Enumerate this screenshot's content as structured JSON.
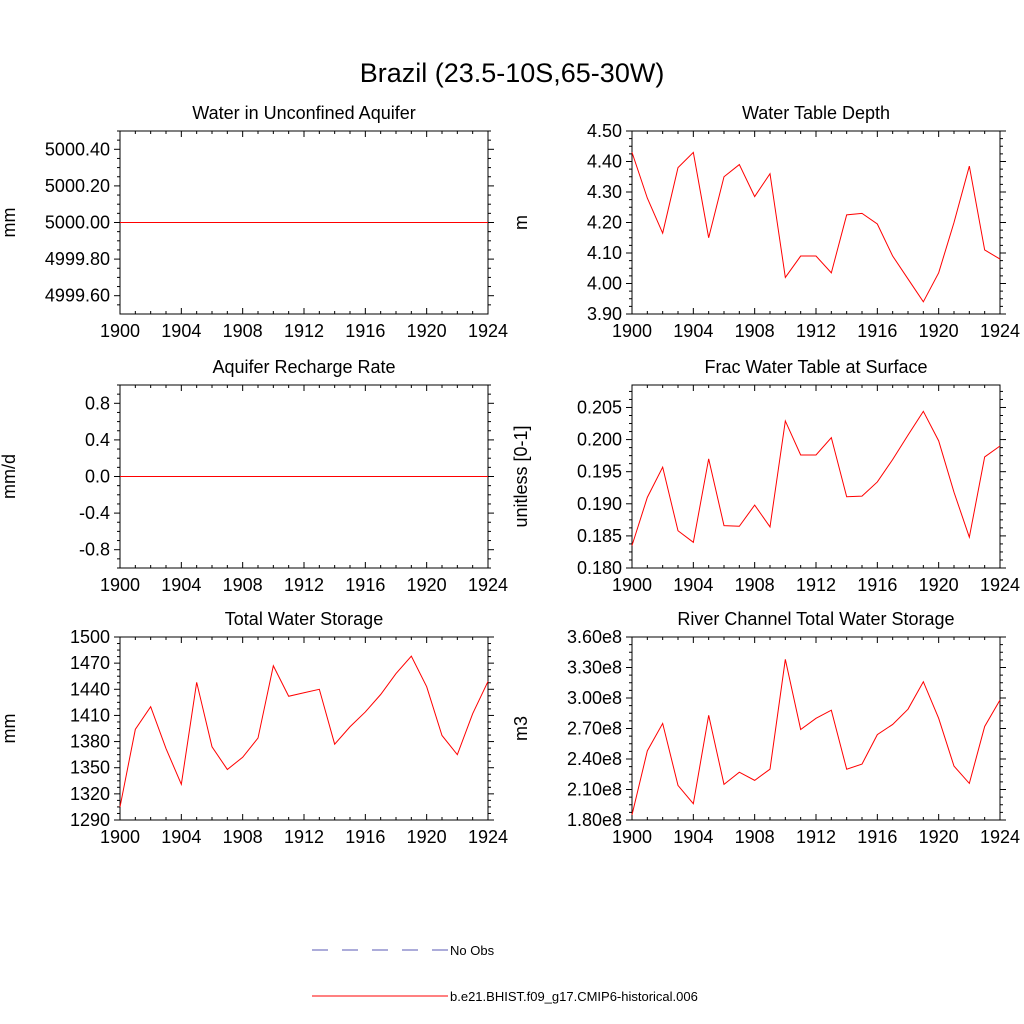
{
  "figure_title": "Brazil (23.5-10S,65-30W)",
  "colors": {
    "model": "#ff0000",
    "obs": "#5a5ab4",
    "frame": "#000000"
  },
  "legend": {
    "items": [
      {
        "label": "No Obs",
        "style": "dashed",
        "color": "#5a5ab4"
      },
      {
        "label": "b.e21.BHIST.f09_g17.CMIP6-historical.006",
        "style": "solid",
        "color": "#ff0000"
      }
    ]
  },
  "chart_data": [
    {
      "type": "line",
      "title": "Water in Unconfined Aquifer",
      "ylabel": "mm",
      "xlim": [
        1900,
        1924
      ],
      "ylim": [
        4999.5,
        5000.5
      ],
      "yticks": [
        4999.6,
        4999.8,
        5000.0,
        5000.2,
        5000.4
      ],
      "ytick_labels": [
        "4999.60",
        "4999.80",
        "5000.00",
        "5000.20",
        "5000.40"
      ],
      "xticks": [
        1900,
        1904,
        1908,
        1912,
        1916,
        1920,
        1924
      ],
      "xtick_labels": [
        "1900",
        "1904",
        "1908",
        "1912",
        "1916",
        "1920",
        "1924"
      ],
      "series": [
        {
          "x": [
            1900,
            1901,
            1902,
            1903,
            1904,
            1905,
            1906,
            1907,
            1908,
            1909,
            1910,
            1911,
            1912,
            1913,
            1914,
            1915,
            1916,
            1917,
            1918,
            1919,
            1920,
            1921,
            1922,
            1923,
            1924
          ],
          "y": [
            5000,
            5000,
            5000,
            5000,
            5000,
            5000,
            5000,
            5000,
            5000,
            5000,
            5000,
            5000,
            5000,
            5000,
            5000,
            5000,
            5000,
            5000,
            5000,
            5000,
            5000,
            5000,
            5000,
            5000,
            5000
          ]
        }
      ]
    },
    {
      "type": "line",
      "title": "Water Table Depth",
      "ylabel": "m",
      "xlim": [
        1900,
        1924
      ],
      "ylim": [
        3.9,
        4.5
      ],
      "yticks": [
        3.9,
        4.0,
        4.1,
        4.2,
        4.3,
        4.4,
        4.5
      ],
      "ytick_labels": [
        "3.90",
        "4.00",
        "4.10",
        "4.20",
        "4.30",
        "4.40",
        "4.50"
      ],
      "xticks": [
        1900,
        1904,
        1908,
        1912,
        1916,
        1920,
        1924
      ],
      "xtick_labels": [
        "1900",
        "1904",
        "1908",
        "1912",
        "1916",
        "1920",
        "1924"
      ],
      "series": [
        {
          "x": [
            1900,
            1901,
            1902,
            1903,
            1904,
            1905,
            1906,
            1907,
            1908,
            1909,
            1910,
            1911,
            1912,
            1913,
            1914,
            1915,
            1916,
            1917,
            1918,
            1919,
            1920,
            1921,
            1922,
            1923,
            1924
          ],
          "y": [
            4.43,
            4.28,
            4.165,
            4.38,
            4.43,
            4.15,
            4.35,
            4.39,
            4.285,
            4.36,
            4.02,
            4.09,
            4.09,
            4.035,
            4.225,
            4.23,
            4.195,
            4.09,
            4.015,
            3.94,
            4.035,
            4.2,
            4.385,
            4.11,
            4.08
          ]
        }
      ]
    },
    {
      "type": "line",
      "title": "Aquifer Recharge Rate",
      "ylabel": "mm/d",
      "xlim": [
        1900,
        1924
      ],
      "ylim": [
        -1.0,
        1.0
      ],
      "yticks": [
        -0.8,
        -0.4,
        0.0,
        0.4,
        0.8
      ],
      "ytick_labels": [
        "-0.8",
        "-0.4",
        "0.0",
        "0.4",
        "0.8"
      ],
      "xticks": [
        1900,
        1904,
        1908,
        1912,
        1916,
        1920,
        1924
      ],
      "xtick_labels": [
        "1900",
        "1904",
        "1908",
        "1912",
        "1916",
        "1920",
        "1924"
      ],
      "series": [
        {
          "x": [
            1900,
            1901,
            1902,
            1903,
            1904,
            1905,
            1906,
            1907,
            1908,
            1909,
            1910,
            1911,
            1912,
            1913,
            1914,
            1915,
            1916,
            1917,
            1918,
            1919,
            1920,
            1921,
            1922,
            1923,
            1924
          ],
          "y": [
            0,
            0,
            0,
            0,
            0,
            0,
            0,
            0,
            0,
            0,
            0,
            0,
            0,
            0,
            0,
            0,
            0,
            0,
            0,
            0,
            0,
            0,
            0,
            0,
            0
          ]
        }
      ]
    },
    {
      "type": "line",
      "title": "Frac Water Table at Surface",
      "ylabel": "unitless [0-1]",
      "xlim": [
        1900,
        1924
      ],
      "ylim": [
        0.18,
        0.2085
      ],
      "yticks": [
        0.18,
        0.185,
        0.19,
        0.195,
        0.2,
        0.205
      ],
      "ytick_labels": [
        "0.180",
        "0.185",
        "0.190",
        "0.195",
        "0.200",
        "0.205"
      ],
      "xticks": [
        1900,
        1904,
        1908,
        1912,
        1916,
        1920,
        1924
      ],
      "xtick_labels": [
        "1900",
        "1904",
        "1908",
        "1912",
        "1916",
        "1920",
        "1924"
      ],
      "series": [
        {
          "x": [
            1900,
            1901,
            1902,
            1903,
            1904,
            1905,
            1906,
            1907,
            1908,
            1909,
            1910,
            1911,
            1912,
            1913,
            1914,
            1915,
            1916,
            1917,
            1918,
            1919,
            1920,
            1921,
            1922,
            1923,
            1924
          ],
          "y": [
            0.1835,
            0.191,
            0.1957,
            0.1858,
            0.184,
            0.197,
            0.1866,
            0.1865,
            0.1898,
            0.1864,
            0.2029,
            0.1976,
            0.1976,
            0.2003,
            0.1911,
            0.1912,
            0.1934,
            0.1969,
            0.2007,
            0.2044,
            0.1998,
            0.1918,
            0.1848,
            0.1973,
            0.199
          ]
        }
      ]
    },
    {
      "type": "line",
      "title": "Total Water Storage",
      "ylabel": "mm",
      "xlim": [
        1900,
        1924
      ],
      "ylim": [
        1290,
        1500
      ],
      "yticks": [
        1290,
        1320,
        1350,
        1380,
        1410,
        1440,
        1470,
        1500
      ],
      "ytick_labels": [
        "1290",
        "1320",
        "1350",
        "1380",
        "1410",
        "1440",
        "1470",
        "1500"
      ],
      "xticks": [
        1900,
        1904,
        1908,
        1912,
        1916,
        1920,
        1924
      ],
      "xtick_labels": [
        "1900",
        "1904",
        "1908",
        "1912",
        "1916",
        "1920",
        "1924"
      ],
      "series": [
        {
          "x": [
            1900,
            1901,
            1902,
            1903,
            1904,
            1905,
            1906,
            1907,
            1908,
            1909,
            1910,
            1911,
            1912,
            1913,
            1914,
            1915,
            1916,
            1917,
            1918,
            1919,
            1920,
            1921,
            1922,
            1923,
            1924
          ],
          "y": [
            1305,
            1394,
            1420,
            1372,
            1331,
            1448,
            1374,
            1348,
            1362,
            1384,
            1467,
            1432,
            1436,
            1440,
            1377,
            1397,
            1414,
            1434,
            1458,
            1478,
            1443,
            1387,
            1365,
            1412,
            1449
          ]
        }
      ]
    },
    {
      "type": "line",
      "title": "River Channel Total Water Storage",
      "ylabel": "m3",
      "xlim": [
        1900,
        1924
      ],
      "ylim": [
        180000000,
        360000000
      ],
      "yticks": [
        180000000,
        210000000,
        240000000,
        270000000,
        300000000,
        330000000,
        360000000
      ],
      "ytick_labels": [
        "1.80e8",
        "2.10e8",
        "2.40e8",
        "2.70e8",
        "3.00e8",
        "3.30e8",
        "3.60e8"
      ],
      "xticks": [
        1900,
        1904,
        1908,
        1912,
        1916,
        1920,
        1924
      ],
      "xtick_labels": [
        "1900",
        "1904",
        "1908",
        "1912",
        "1916",
        "1920",
        "1924"
      ],
      "series": [
        {
          "x": [
            1900,
            1901,
            1902,
            1903,
            1904,
            1905,
            1906,
            1907,
            1908,
            1909,
            1910,
            1911,
            1912,
            1913,
            1914,
            1915,
            1916,
            1917,
            1918,
            1919,
            1920,
            1921,
            1922,
            1923,
            1924
          ],
          "y": [
            185000000,
            248000000,
            275000000,
            214000000,
            196000000,
            283000000,
            215000000,
            227000000,
            219000000,
            230000000,
            338000000,
            269000000,
            280000000,
            288000000,
            230000000,
            235000000,
            264000000,
            274000000,
            289000000,
            316000000,
            280000000,
            233000000,
            216000000,
            272000000,
            298000000
          ]
        }
      ]
    }
  ]
}
